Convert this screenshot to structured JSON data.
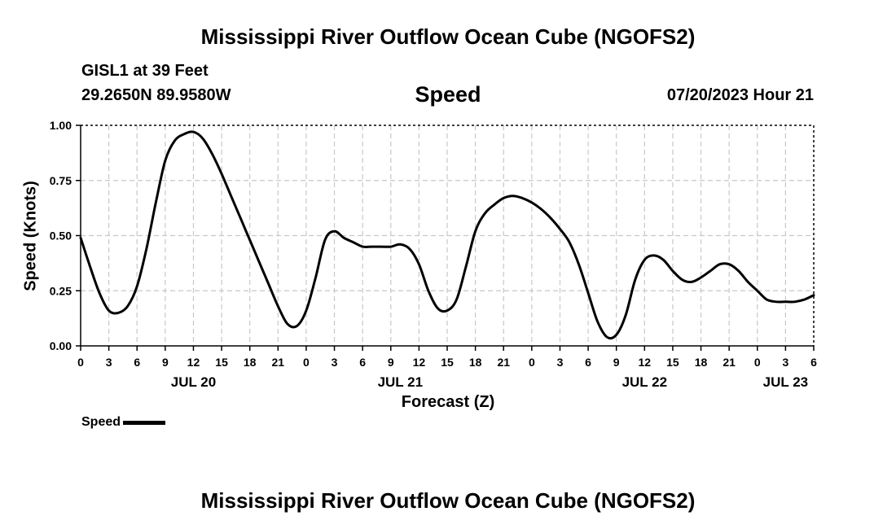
{
  "page": {
    "main_title": "Mississippi River Outflow Ocean Cube (NGOFS2)",
    "footer_title": "Mississippi River Outflow Ocean Cube (NGOFS2)",
    "station_line": "GISL1 at 39 Feet",
    "coords_line": "29.2650N  89.9580W",
    "chart_title": "Speed",
    "datetime": "07/20/2023 Hour 21"
  },
  "colors": {
    "line": "#000000",
    "grid": "#c8c8c8",
    "background": "#ffffff"
  },
  "chart_data": {
    "type": "line",
    "title": "Speed",
    "xlabel": "Forecast (Z)",
    "ylabel": "Speed (Knots)",
    "x_unit": "hours from JUL 20 00Z",
    "xlim": [
      0,
      78
    ],
    "ylim": [
      0,
      1
    ],
    "grid": true,
    "legend_position": "bottom-left",
    "y_ticks": [
      {
        "value": 0.0,
        "label": "0.00"
      },
      {
        "value": 0.25,
        "label": "0.25"
      },
      {
        "value": 0.5,
        "label": "0.50"
      },
      {
        "value": 0.75,
        "label": "0.75"
      },
      {
        "value": 1.0,
        "label": "1.00"
      }
    ],
    "x_ticks": [
      {
        "value": 0,
        "label": "0"
      },
      {
        "value": 3,
        "label": "3"
      },
      {
        "value": 6,
        "label": "6"
      },
      {
        "value": 9,
        "label": "9"
      },
      {
        "value": 12,
        "label": "12"
      },
      {
        "value": 15,
        "label": "15"
      },
      {
        "value": 18,
        "label": "18"
      },
      {
        "value": 21,
        "label": "21"
      },
      {
        "value": 24,
        "label": "0"
      },
      {
        "value": 27,
        "label": "3"
      },
      {
        "value": 30,
        "label": "6"
      },
      {
        "value": 33,
        "label": "9"
      },
      {
        "value": 36,
        "label": "12"
      },
      {
        "value": 39,
        "label": "15"
      },
      {
        "value": 42,
        "label": "18"
      },
      {
        "value": 45,
        "label": "21"
      },
      {
        "value": 48,
        "label": "0"
      },
      {
        "value": 51,
        "label": "3"
      },
      {
        "value": 54,
        "label": "6"
      },
      {
        "value": 57,
        "label": "9"
      },
      {
        "value": 60,
        "label": "12"
      },
      {
        "value": 63,
        "label": "15"
      },
      {
        "value": 66,
        "label": "18"
      },
      {
        "value": 69,
        "label": "21"
      },
      {
        "value": 72,
        "label": "0"
      },
      {
        "value": 75,
        "label": "3"
      },
      {
        "value": 78,
        "label": "6"
      }
    ],
    "date_labels": [
      {
        "value": 12,
        "label": "JUL 20"
      },
      {
        "value": 34,
        "label": "JUL 21"
      },
      {
        "value": 60,
        "label": "JUL 22"
      },
      {
        "value": 75,
        "label": "JUL 23"
      }
    ],
    "series": [
      {
        "name": "Speed",
        "x": [
          0,
          1,
          2,
          3,
          4,
          5,
          6,
          7,
          8,
          9,
          10,
          11,
          12,
          13,
          14,
          15,
          16,
          17,
          18,
          19,
          20,
          21,
          22,
          23,
          24,
          25,
          26,
          27,
          28,
          29,
          30,
          31,
          32,
          33,
          34,
          35,
          36,
          37,
          38,
          39,
          40,
          41,
          42,
          43,
          44,
          45,
          46,
          47,
          48,
          49,
          50,
          51,
          52,
          53,
          54,
          55,
          56,
          57,
          58,
          59,
          60,
          61,
          62,
          63,
          64,
          65,
          66,
          67,
          68,
          69,
          70,
          71,
          72,
          73,
          74,
          75,
          76,
          77,
          78
        ],
        "values": [
          0.49,
          0.36,
          0.24,
          0.16,
          0.15,
          0.18,
          0.27,
          0.44,
          0.65,
          0.84,
          0.93,
          0.96,
          0.97,
          0.94,
          0.87,
          0.78,
          0.68,
          0.58,
          0.48,
          0.38,
          0.28,
          0.18,
          0.1,
          0.09,
          0.16,
          0.31,
          0.48,
          0.52,
          0.49,
          0.47,
          0.45,
          0.45,
          0.45,
          0.45,
          0.46,
          0.44,
          0.37,
          0.25,
          0.17,
          0.16,
          0.21,
          0.36,
          0.52,
          0.6,
          0.64,
          0.67,
          0.68,
          0.67,
          0.65,
          0.62,
          0.58,
          0.53,
          0.47,
          0.37,
          0.24,
          0.11,
          0.04,
          0.05,
          0.14,
          0.3,
          0.39,
          0.41,
          0.39,
          0.34,
          0.3,
          0.29,
          0.31,
          0.34,
          0.37,
          0.37,
          0.34,
          0.29,
          0.25,
          0.21,
          0.2,
          0.2,
          0.2,
          0.21,
          0.23
        ]
      }
    ]
  }
}
